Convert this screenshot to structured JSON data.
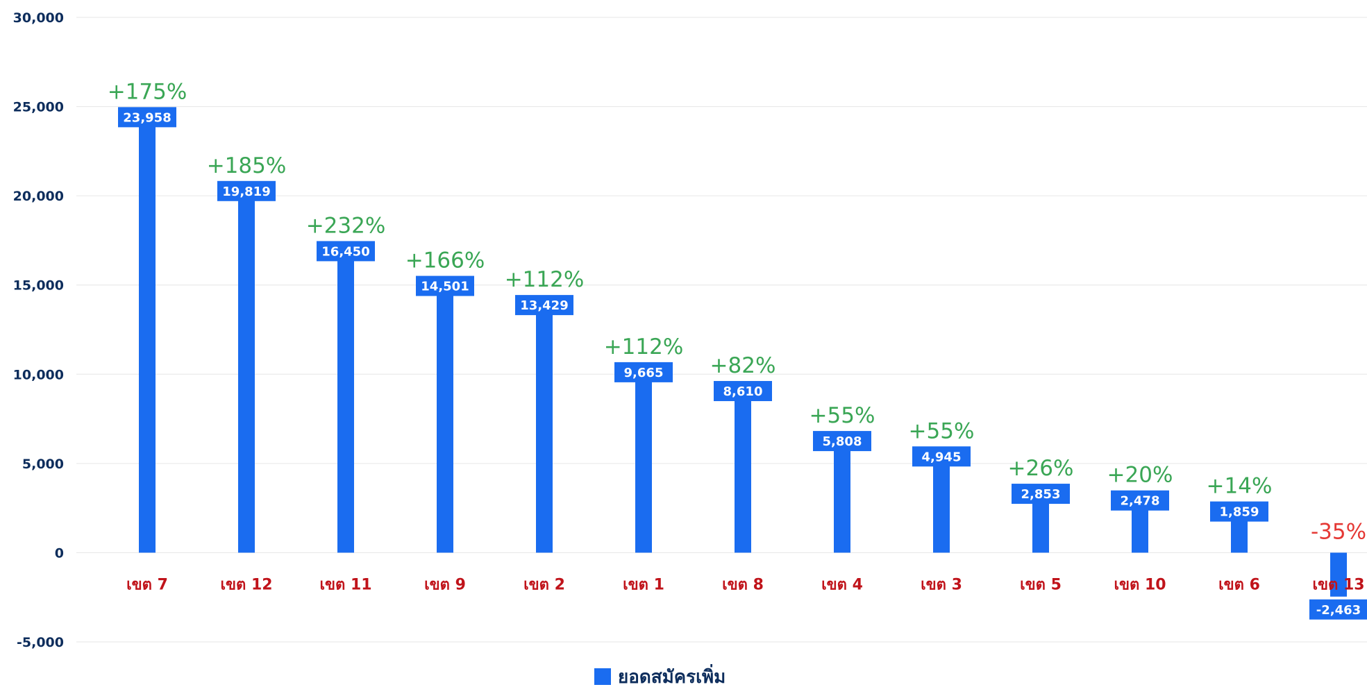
{
  "chart_data": {
    "type": "bar",
    "categories": [
      "เขต 7",
      "เขต 12",
      "เขต 11",
      "เขต 9",
      "เขต 2",
      "เขต 1",
      "เขต 8",
      "เขต 4",
      "เขต 3",
      "เขต 5",
      "เขต 10",
      "เขต 6",
      "เขต 13"
    ],
    "series": [
      {
        "name": "ยอดสมัครเพิ่ม",
        "values": [
          23958,
          19819,
          16450,
          14501,
          13429,
          9665,
          8610,
          5808,
          4945,
          2853,
          2478,
          1859,
          -2463
        ],
        "value_labels": [
          "23,958",
          "19,819",
          "16,450",
          "14,501",
          "13,429",
          "9,665",
          "8,610",
          "5,808",
          "4,945",
          "2,853",
          "2,478",
          "1,859",
          "-2,463"
        ],
        "color": "#1a6cf0"
      }
    ],
    "annotations": [
      "+175%",
      "+185%",
      "+232%",
      "+166%",
      "+112%",
      "+112%",
      "+82%",
      "+55%",
      "+55%",
      "+26%",
      "+20%",
      "+14%",
      "-35%"
    ],
    "annotation_colors": {
      "positive": "#3aa655",
      "negative": "#e53935"
    },
    "category_label_color": "#c0131a",
    "ylim": [
      -5000,
      30000
    ],
    "yticks": [
      -5000,
      0,
      5000,
      10000,
      15000,
      20000,
      25000,
      30000
    ],
    "ytick_labels": [
      "-5,000",
      "0",
      "5,000",
      "10,000",
      "15,000",
      "20,000",
      "25,000",
      "30,000"
    ],
    "grid": true,
    "legend": {
      "position": "bottom-center",
      "label": "ยอดสมัครเพิ่ม"
    },
    "title": "",
    "xlabel": "",
    "ylabel": ""
  }
}
